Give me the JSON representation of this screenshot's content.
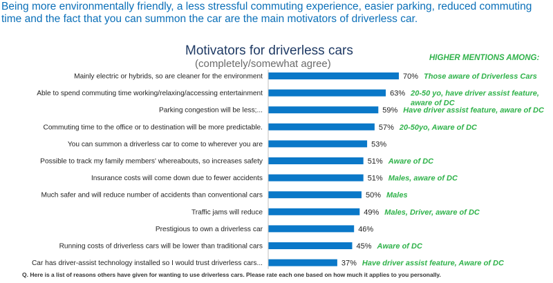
{
  "headline": "Being more environmentally friendly, a less stressful commuting experience, easier parking, reduced commuting time and the fact that you can summon the car are the main motivators of driverless car.",
  "footnote": "Q. Here is a list of reasons others have given for wanting to use driverless cars. Please rate each one based on how much it applies to you personally.",
  "higher_mentions_header": "HIGHER MENTIONS AMONG:",
  "colors": {
    "bar": "#0a78c8",
    "headline": "#0a6fb8",
    "mentions": "#2fb24a",
    "label": "#222222"
  },
  "chart_data": {
    "type": "bar",
    "orientation": "horizontal",
    "title": "Motivators for driverless cars",
    "subtitle": "(completely/somewhat agree)",
    "unit": "%",
    "xlim": [
      0,
      100
    ],
    "grid": false,
    "categories": [
      "Mainly electric or hybrids, so are cleaner for the environment",
      "Able to spend commuting time working/relaxing/accessing entertainment",
      "Parking congestion will be less;...",
      "Commuting time to the office or to destination will be more predictable.",
      "You can summon a driverless car to come to wherever you are",
      "Possible to track my family members' whereabouts, so increases safety",
      "Insurance costs will come down due to fewer accidents",
      "Much safer and will reduce number of accidents than conventional cars",
      "Traffic jams will reduce",
      "Prestigious to own a driverless car",
      "Running costs of driverless cars will be lower than traditional cars",
      "Car has driver-assist technology installed so I would trust driverless cars..."
    ],
    "values": [
      70,
      63,
      59,
      57,
      53,
      51,
      51,
      50,
      49,
      46,
      45,
      37
    ],
    "data_labels": [
      "70%",
      "63%",
      "59%",
      "57%",
      "53%",
      "51%",
      "51%",
      "50%",
      "49%",
      "46%",
      "45%",
      "37%"
    ],
    "higher_mentions": [
      [
        "Those aware of Driverless Cars"
      ],
      [
        "20-50 yo, have driver assist feature,",
        "aware of DC"
      ],
      [
        "Have driver assist feature, aware of DC"
      ],
      [
        "20-50yo, Aware of DC"
      ],
      [],
      [
        "Aware of DC"
      ],
      [
        "Males, aware of DC"
      ],
      [
        "Males"
      ],
      [
        "Males, Driver, aware of DC"
      ],
      [],
      [
        "Aware of DC"
      ],
      [
        "Have driver assist feature, Aware of DC"
      ]
    ]
  }
}
